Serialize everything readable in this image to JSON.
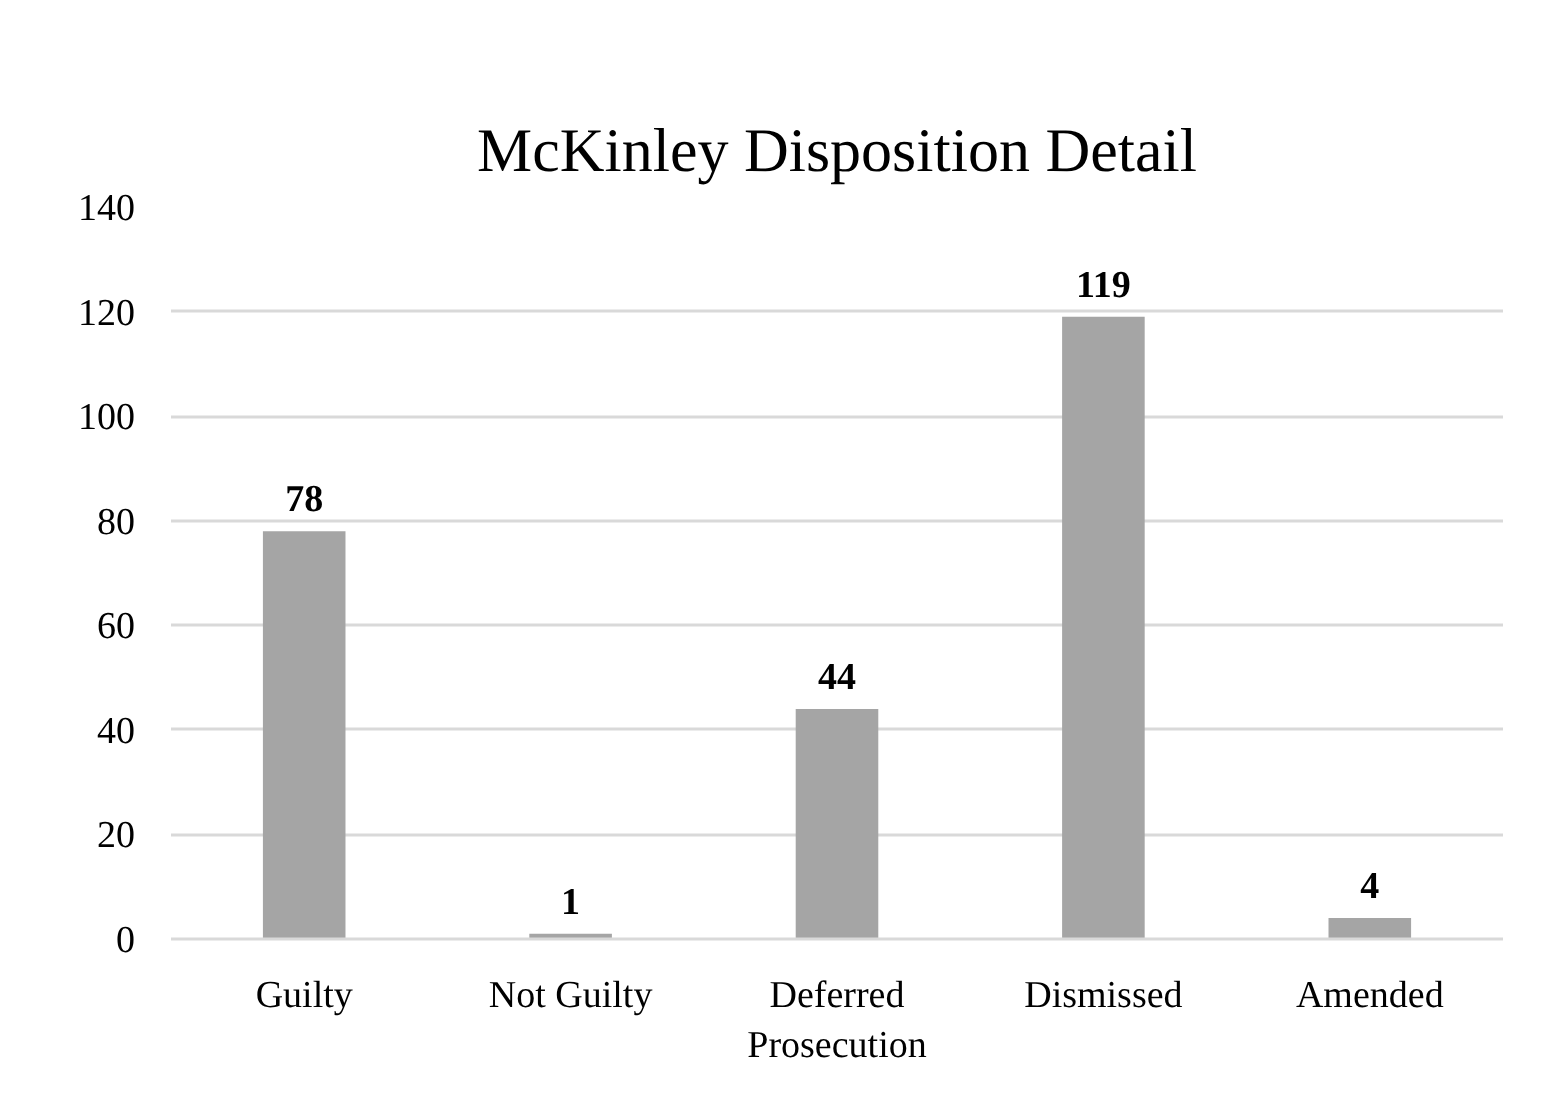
{
  "chart_data": {
    "type": "bar",
    "title": "McKinley Disposition Detail",
    "categories": [
      "Guilty",
      "Not Guilty",
      "Deferred Prosecution",
      "Dismissed",
      "Amended"
    ],
    "values": [
      78,
      1,
      44,
      119,
      4
    ],
    "color": "#a5a5a5",
    "ylim": [
      0,
      140
    ],
    "yticks": [
      0,
      20,
      40,
      60,
      80,
      100,
      120,
      140
    ],
    "grid": "y",
    "data_labels": true
  }
}
